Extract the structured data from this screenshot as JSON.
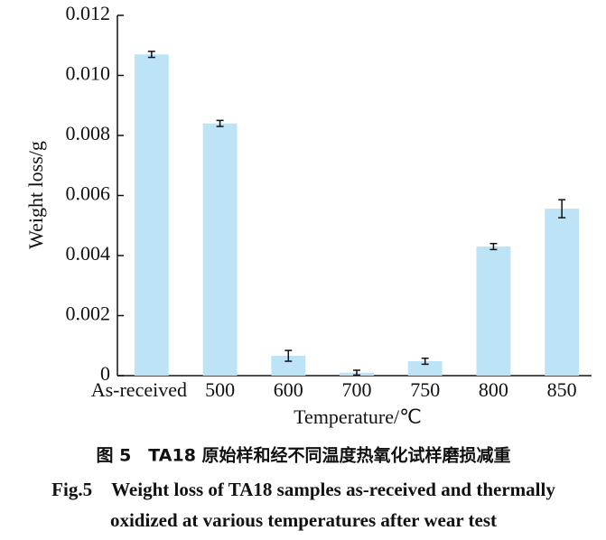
{
  "chart_data": {
    "type": "bar",
    "xlabel": "Temperature/℃",
    "ylabel": "Weight loss/g",
    "categories": [
      "As-received",
      "500",
      "600",
      "700",
      "750",
      "800",
      "850"
    ],
    "values": [
      0.0107,
      0.0084,
      0.00066,
      0.0001,
      0.00048,
      0.0043,
      0.00556
    ],
    "errors": [
      0.0001,
      0.0001,
      0.00018,
      8e-05,
      0.0001,
      0.0001,
      0.0003
    ],
    "color": "#bde3f7",
    "ylim": [
      0,
      0.012
    ],
    "yticks": [
      0,
      0.002,
      0.004,
      0.006,
      0.008,
      {
        "value": 0.01,
        "label": "0.010"
      },
      0.012
    ],
    "grid": false
  },
  "figure_caption": {
    "zh": "图 5　TA18 原始样和经不同温度热氧化试样磨损减重",
    "en": [
      "Fig.5　Weight loss of TA18 samples as-received and thermally",
      "oxidized at various temperatures after wear test"
    ]
  }
}
